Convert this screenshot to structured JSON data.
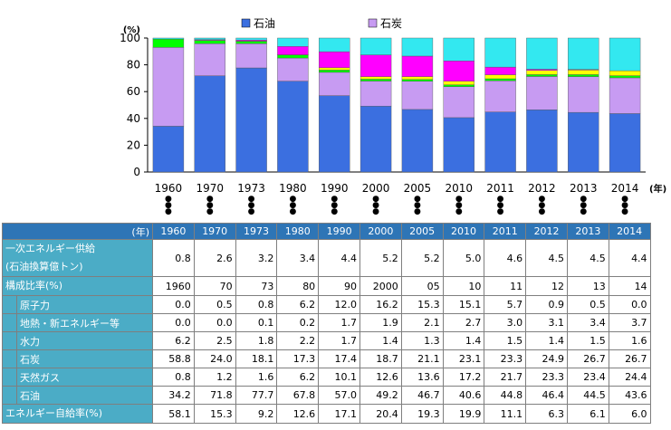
{
  "chart_data": {
    "type": "bar",
    "stacked": true,
    "categories": [
      "1960",
      "1970",
      "1973",
      "1980",
      "1990",
      "2000",
      "2005",
      "2010",
      "2011",
      "2012",
      "2013",
      "2014"
    ],
    "ylim": [
      0,
      100
    ],
    "yticks": [
      0,
      20,
      40,
      60,
      80,
      100
    ],
    "ylabel": "(%)",
    "xlabel": "(年)",
    "legend": [
      {
        "name": "石油",
        "color": "#3b6fe0"
      },
      {
        "name": "石炭",
        "color": "#c79bf2"
      }
    ],
    "series": [
      {
        "name": "石油",
        "color": "#3b6fe0",
        "values": [
          34.2,
          71.8,
          77.7,
          67.8,
          57.0,
          49.2,
          46.7,
          40.6,
          44.8,
          46.4,
          44.5,
          43.6
        ]
      },
      {
        "name": "天然ガス",
        "color": "#a5a5a5",
        "values": [
          0.8,
          1.2,
          1.6,
          6.2,
          10.1,
          12.6,
          13.6,
          17.2,
          21.7,
          23.3,
          23.4,
          24.4
        ]
      },
      {
        "name": "石炭",
        "color": "#c79bf2",
        "values": [
          58.8,
          24.0,
          18.1,
          17.3,
          17.4,
          18.7,
          21.1,
          23.1,
          23.3,
          24.9,
          26.7,
          26.7
        ]
      },
      {
        "name": "水力",
        "color": "#00ff00",
        "values": [
          6.2,
          2.5,
          1.8,
          2.2,
          1.7,
          1.4,
          1.3,
          1.4,
          1.5,
          1.4,
          1.5,
          1.6
        ]
      },
      {
        "name": "地熱・新エネルギー等",
        "color": "#ffff00",
        "values": [
          0.0,
          0.0,
          0.1,
          0.2,
          1.7,
          1.9,
          2.1,
          2.7,
          3.0,
          3.1,
          3.4,
          3.7
        ]
      },
      {
        "name": "原子力",
        "color": "#ff00ff",
        "values": [
          0.0,
          0.5,
          0.8,
          6.2,
          12.0,
          16.2,
          15.3,
          15.1,
          5.7,
          0.9,
          0.5,
          0.0
        ]
      }
    ],
    "series_display_order": [
      "石油",
      "石炭",
      "水力",
      "地熱・新エネルギー等",
      "原子力"
    ],
    "extra_top_color": "#33e8f0"
  },
  "table": {
    "year_header": "(年)",
    "years": [
      "1960",
      "1970",
      "1973",
      "1980",
      "1990",
      "2000",
      "2005",
      "2010",
      "2011",
      "2012",
      "2013",
      "2014"
    ],
    "rows": [
      {
        "label": "一次エネルギー供給",
        "label2": "(石油換算億トン)",
        "indent": false,
        "values": [
          "0.8",
          "2.6",
          "3.2",
          "3.4",
          "4.4",
          "5.2",
          "5.2",
          "5.0",
          "4.6",
          "4.5",
          "4.5",
          "4.4"
        ]
      },
      {
        "label": "構成比率(%)",
        "indent": false,
        "values": [
          "1960",
          "70",
          "73",
          "80",
          "90",
          "2000",
          "05",
          "10",
          "11",
          "12",
          "13",
          "14"
        ]
      },
      {
        "label": "原子力",
        "indent": true,
        "values": [
          "0.0",
          "0.5",
          "0.8",
          "6.2",
          "12.0",
          "16.2",
          "15.3",
          "15.1",
          "5.7",
          "0.9",
          "0.5",
          "0.0"
        ]
      },
      {
        "label": "地熱・新エネルギー等",
        "indent": true,
        "values": [
          "0.0",
          "0.0",
          "0.1",
          "0.2",
          "1.7",
          "1.9",
          "2.1",
          "2.7",
          "3.0",
          "3.1",
          "3.4",
          "3.7"
        ]
      },
      {
        "label": "水力",
        "indent": true,
        "values": [
          "6.2",
          "2.5",
          "1.8",
          "2.2",
          "1.7",
          "1.4",
          "1.3",
          "1.4",
          "1.5",
          "1.4",
          "1.5",
          "1.6"
        ]
      },
      {
        "label": "石炭",
        "indent": true,
        "values": [
          "58.8",
          "24.0",
          "18.1",
          "17.3",
          "17.4",
          "18.7",
          "21.1",
          "23.1",
          "23.3",
          "24.9",
          "26.7",
          "26.7"
        ]
      },
      {
        "label": "天然ガス",
        "indent": true,
        "values": [
          "0.8",
          "1.2",
          "1.6",
          "6.2",
          "10.1",
          "12.6",
          "13.6",
          "17.2",
          "21.7",
          "23.3",
          "23.4",
          "24.4"
        ]
      },
      {
        "label": "石油",
        "indent": true,
        "values": [
          "34.2",
          "71.8",
          "77.7",
          "67.8",
          "57.0",
          "49.2",
          "46.7",
          "40.6",
          "44.8",
          "46.4",
          "44.5",
          "43.6"
        ]
      },
      {
        "label": "エネルギー自給率(%)",
        "indent": false,
        "values": [
          "58.1",
          "15.3",
          "9.2",
          "12.6",
          "17.1",
          "20.4",
          "19.3",
          "19.9",
          "11.1",
          "6.3",
          "6.1",
          "6.0"
        ]
      }
    ]
  }
}
